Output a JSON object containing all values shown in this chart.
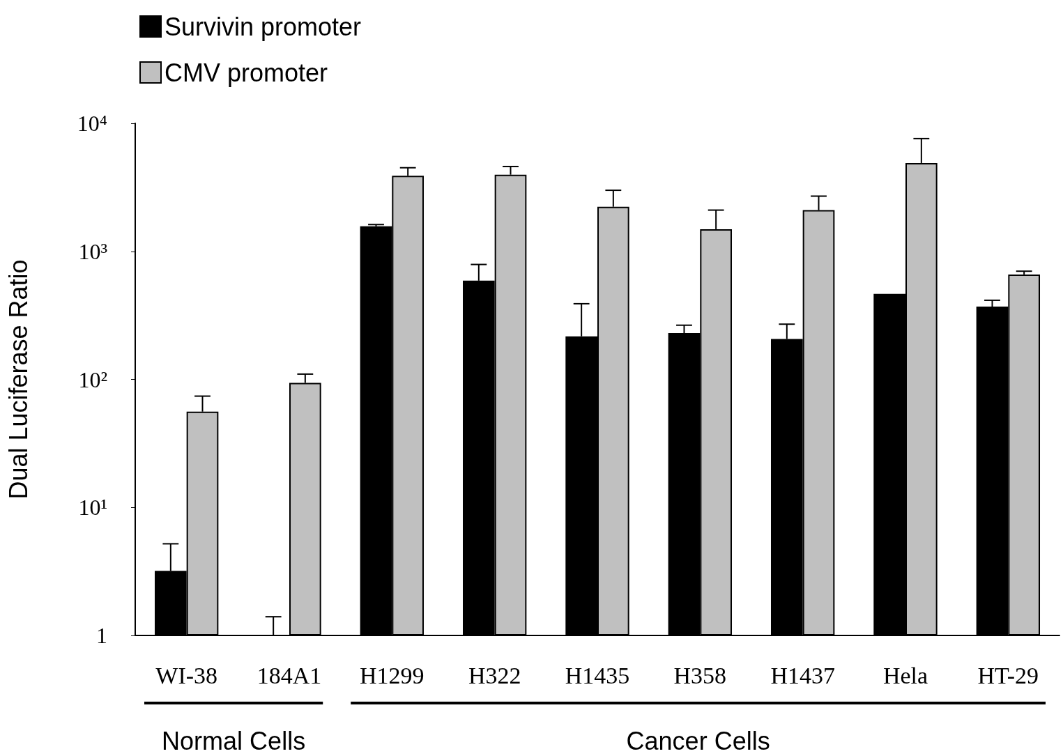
{
  "chart_data": {
    "type": "bar",
    "ylabel": "Dual Luciferase Ratio",
    "categories": [
      "WI-38",
      "184A1",
      "H1299",
      "H322",
      "H1435",
      "H358",
      "H1437",
      "Hela",
      "HT-29"
    ],
    "series": [
      {
        "name": "Survivin promoter",
        "color": "#000000",
        "values": [
          3.2,
          1,
          1570,
          590,
          217,
          230,
          207,
          465,
          370
        ],
        "errors": [
          [
            3.2,
            5.2
          ],
          [
            1,
            1.4
          ],
          [
            1570,
            1620
          ],
          [
            590,
            790
          ],
          [
            217,
            390
          ],
          [
            230,
            265
          ],
          [
            207,
            270
          ],
          null,
          [
            370,
            415
          ]
        ]
      },
      {
        "name": "CMV promoter",
        "color": "#c0c0c0",
        "values": [
          56,
          94,
          3900,
          3970,
          2230,
          1490,
          2100,
          4900,
          660
        ],
        "errors": [
          [
            56,
            74
          ],
          [
            94,
            110
          ],
          [
            3900,
            4500
          ],
          [
            3970,
            4600
          ],
          [
            2230,
            3000
          ],
          [
            1490,
            2100
          ],
          [
            2100,
            2700
          ],
          [
            4900,
            7600
          ],
          [
            660,
            700
          ]
        ]
      }
    ],
    "log": "y",
    "ylim": [
      1,
      10000
    ],
    "yticks": [
      1,
      {
        "value": 10,
        "label": "10¹"
      },
      {
        "value": 100,
        "label": "10²"
      },
      {
        "value": 1000,
        "label": "10³"
      },
      {
        "value": 10000,
        "label": "10⁴"
      }
    ],
    "grid": false,
    "legend": "top left",
    "annotations": [
      "Normal Cells",
      "Cancer Cells"
    ]
  }
}
